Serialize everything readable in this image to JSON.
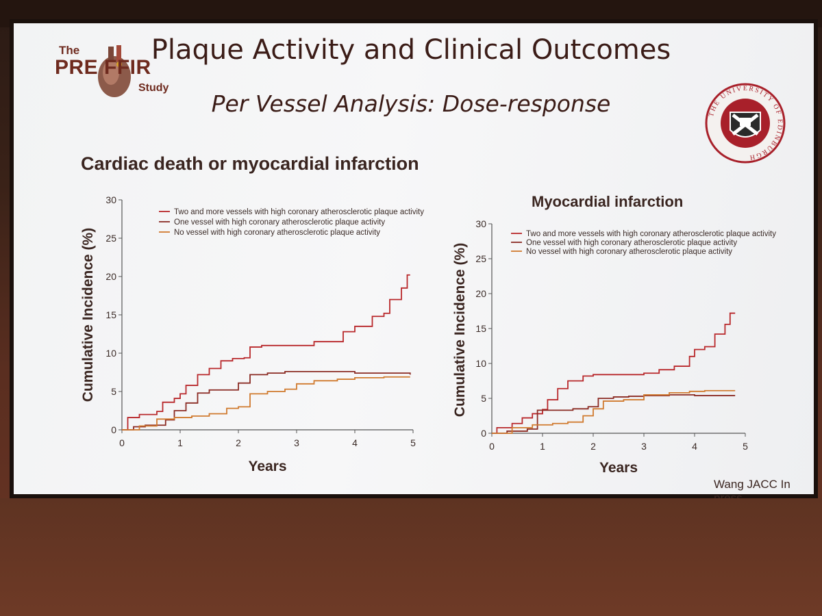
{
  "slide": {
    "title": "Plaque Activity and Clinical Outcomes",
    "subtitle": "Per Vessel Analysis: Dose-response",
    "logo": {
      "the": "The",
      "name": "PRE FFIR",
      "study": "Study"
    },
    "seal_text": "THE UNIVERSITY OF EDINBURGH",
    "citation": "Wang JACC In press"
  },
  "colors": {
    "two_plus": "#b8272a",
    "one": "#8a2a22",
    "none": "#d07a2e",
    "seal_red": "#a8202a"
  },
  "chart_data": [
    {
      "type": "line",
      "title": "Cardiac death or myocardial infarction",
      "xlabel": "Years",
      "ylabel": "Cumulative Incidence (%)",
      "xlim": [
        0,
        5
      ],
      "ylim": [
        0,
        30
      ],
      "xticks": [
        "0",
        "1",
        "2",
        "3",
        "4",
        "5"
      ],
      "yticks": [
        "0",
        "5",
        "10",
        "15",
        "20",
        "25",
        "30"
      ],
      "legend_position": "top",
      "series": [
        {
          "name": "Two and more vessels with high coronary atherosclerotic plaque activity",
          "x": [
            0,
            0.1,
            0.3,
            0.6,
            0.7,
            0.9,
            1.0,
            1.1,
            1.3,
            1.5,
            1.7,
            1.9,
            2.1,
            2.2,
            2.4,
            2.6,
            3.0,
            3.3,
            3.8,
            4.0,
            4.1,
            4.3,
            4.5,
            4.6,
            4.8,
            4.9,
            4.95
          ],
          "y": [
            0,
            1.6,
            2.0,
            2.4,
            3.6,
            4.1,
            4.7,
            5.8,
            7.2,
            8.0,
            9.0,
            9.3,
            9.4,
            10.8,
            11.0,
            11.0,
            11.0,
            11.5,
            12.8,
            13.5,
            13.5,
            14.8,
            15.2,
            17.0,
            18.5,
            20.2,
            20.2
          ]
        },
        {
          "name": "One vessel with high coronary atherosclerotic plaque activity",
          "x": [
            0,
            0.2,
            0.4,
            0.6,
            0.75,
            0.9,
            1.1,
            1.3,
            1.5,
            1.8,
            2.0,
            2.2,
            2.5,
            2.8,
            3.0,
            4.0,
            4.95
          ],
          "y": [
            0,
            0.4,
            0.6,
            0.6,
            1.3,
            2.5,
            3.5,
            4.8,
            5.2,
            5.2,
            6.1,
            7.2,
            7.4,
            7.6,
            7.6,
            7.4,
            7.2
          ]
        },
        {
          "name": "No vessel with high coronary atherosclerotic plaque activity",
          "x": [
            0,
            0.3,
            0.6,
            0.9,
            1.2,
            1.5,
            1.8,
            2.0,
            2.2,
            2.5,
            2.8,
            3.0,
            3.3,
            3.7,
            4.0,
            4.5,
            4.95
          ],
          "y": [
            0,
            0.5,
            1.4,
            1.6,
            1.8,
            2.1,
            2.8,
            3.0,
            4.7,
            5.0,
            5.3,
            6.0,
            6.4,
            6.6,
            6.8,
            6.9,
            6.9
          ]
        }
      ]
    },
    {
      "type": "line",
      "title": "Myocardial infarction",
      "xlabel": "Years",
      "ylabel": "Cumulative Incidence (%)",
      "xlim": [
        0,
        5
      ],
      "ylim": [
        0,
        30
      ],
      "xticks": [
        "0",
        "1",
        "2",
        "3",
        "4",
        "5"
      ],
      "yticks": [
        "0",
        "5",
        "10",
        "15",
        "20",
        "25",
        "30"
      ],
      "legend_position": "top",
      "series": [
        {
          "name": "Two and more vessels with high coronary atherosclerotic plaque activity",
          "x": [
            0,
            0.1,
            0.4,
            0.6,
            0.8,
            1.0,
            1.1,
            1.3,
            1.5,
            1.8,
            2.0,
            2.4,
            2.8,
            3.0,
            3.3,
            3.6,
            3.9,
            4.0,
            4.2,
            4.4,
            4.6,
            4.7,
            4.8
          ],
          "y": [
            0,
            0.8,
            1.4,
            2.2,
            2.8,
            3.4,
            4.8,
            6.4,
            7.5,
            8.2,
            8.4,
            8.4,
            8.4,
            8.6,
            9.1,
            9.6,
            11.0,
            12.0,
            12.4,
            14.2,
            15.6,
            17.2,
            17.2
          ]
        },
        {
          "name": "One vessel with high coronary atherosclerotic plaque activity",
          "x": [
            0,
            0.3,
            0.7,
            0.9,
            1.3,
            1.6,
            1.9,
            2.1,
            2.4,
            2.7,
            3.0,
            3.5,
            4.0,
            4.8
          ],
          "y": [
            0,
            0.3,
            0.6,
            3.3,
            3.3,
            3.5,
            3.8,
            5.0,
            5.2,
            5.3,
            5.4,
            5.5,
            5.4,
            5.4
          ]
        },
        {
          "name": "No vessel with high coronary atherosclerotic plaque activity",
          "x": [
            0,
            0.4,
            0.8,
            1.2,
            1.5,
            1.8,
            2.0,
            2.2,
            2.6,
            3.0,
            3.5,
            3.9,
            4.2,
            4.8
          ],
          "y": [
            0,
            0.8,
            1.2,
            1.4,
            1.6,
            2.5,
            3.5,
            4.6,
            4.8,
            5.5,
            5.8,
            6.0,
            6.1,
            6.1
          ]
        }
      ]
    }
  ]
}
